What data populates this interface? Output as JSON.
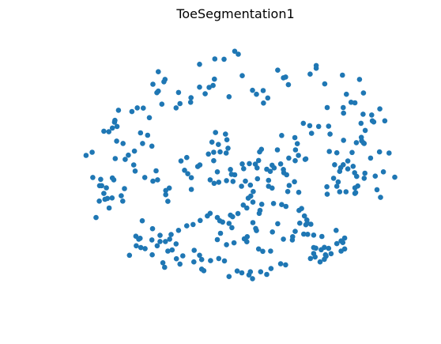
{
  "chart_data": {
    "type": "scatter",
    "title": "ToeSegmentation1",
    "xlabel": "",
    "ylabel": "",
    "axes_visible": false,
    "grid": false,
    "marker_color": "#1f77b4",
    "xlim": [
      0,
      100
    ],
    "ylim": [
      0,
      100
    ],
    "points": [
      [
        50.0,
        95.0
      ],
      [
        51.0,
        93.9
      ],
      [
        40.1,
        90.1
      ],
      [
        44.4,
        92.1
      ],
      [
        47.0,
        92.0
      ],
      [
        72.9,
        88.6
      ],
      [
        72.9,
        89.6
      ],
      [
        62.1,
        87.9
      ],
      [
        71.2,
        86.4
      ],
      [
        63.7,
        85.0
      ],
      [
        64.3,
        85.3
      ],
      [
        65.1,
        82.4
      ],
      [
        28.5,
        87.3
      ],
      [
        30.4,
        84.4
      ],
      [
        44.3,
        84.5
      ],
      [
        52.1,
        85.8
      ],
      [
        28.5,
        80.0
      ],
      [
        28.1,
        79.4
      ],
      [
        27.0,
        82.6
      ],
      [
        30.1,
        83.5
      ],
      [
        34.2,
        79.5
      ],
      [
        43.9,
        82.1
      ],
      [
        55.0,
        80.3
      ],
      [
        58.0,
        80.2
      ],
      [
        56.1,
        78.8
      ],
      [
        58.1,
        75.5
      ],
      [
        59.3,
        77.4
      ],
      [
        40.1,
        81.5
      ],
      [
        42.8,
        81.4
      ],
      [
        41.7,
        79.0
      ],
      [
        48.4,
        77.9
      ],
      [
        37.7,
        77.5
      ],
      [
        37.6,
        75.8
      ],
      [
        34.6,
        75.3
      ],
      [
        29.5,
        75.1
      ],
      [
        33.5,
        73.7
      ],
      [
        24.3,
        73.6
      ],
      [
        26.0,
        70.0
      ],
      [
        22.6,
        73.7
      ],
      [
        21.1,
        72.3
      ],
      [
        17.3,
        72.8
      ],
      [
        16.3,
        69.0
      ],
      [
        16.2,
        68.3
      ],
      [
        15.6,
        66.1
      ],
      [
        16.9,
        66.7
      ],
      [
        13.2,
        64.9
      ],
      [
        14.6,
        64.7
      ],
      [
        16.8,
        61.2
      ],
      [
        25.5,
        63.4
      ],
      [
        23.5,
        64.3
      ],
      [
        24.1,
        60.3
      ],
      [
        26.7,
        59.3
      ],
      [
        21.8,
        57.4
      ],
      [
        18.6,
        60.3
      ],
      [
        19.2,
        54.3
      ],
      [
        16.4,
        54.6
      ],
      [
        20.1,
        55.9
      ],
      [
        21.6,
        52.2
      ],
      [
        15.6,
        47.3
      ],
      [
        16.0,
        46.6
      ],
      [
        12.6,
        44.4
      ],
      [
        12.3,
        46.8
      ],
      [
        9.9,
        57.0
      ],
      [
        8.2,
        55.8
      ],
      [
        10.1,
        47.5
      ],
      [
        13.9,
        43.6
      ],
      [
        13.2,
        41.5
      ],
      [
        12.0,
        44.4
      ],
      [
        14.7,
        36.0
      ],
      [
        11.9,
        38.6
      ],
      [
        11.0,
        32.4
      ],
      [
        13.5,
        39.3
      ],
      [
        14.2,
        39.6
      ],
      [
        15.5,
        39.8
      ],
      [
        19.0,
        43.3
      ],
      [
        18.1,
        40.6
      ],
      [
        18.5,
        38.6
      ],
      [
        27.9,
        50.0
      ],
      [
        24.7,
        47.5
      ],
      [
        27.0,
        46.1
      ],
      [
        28.3,
        46.6
      ],
      [
        22.0,
        49.9
      ],
      [
        30.6,
        41.0
      ],
      [
        31.2,
        38.5
      ],
      [
        30.6,
        42.6
      ],
      [
        31.6,
        43.5
      ],
      [
        37.8,
        43.0
      ],
      [
        36.8,
        48.9
      ],
      [
        37.8,
        47.4
      ],
      [
        34.9,
        53.7
      ],
      [
        35.9,
        50.2
      ],
      [
        36.5,
        55.0
      ],
      [
        40.2,
        52.2
      ],
      [
        39.6,
        51.6
      ],
      [
        44.1,
        53.8
      ],
      [
        45.9,
        57.1
      ],
      [
        42.6,
        56.3
      ],
      [
        44.1,
        57.0
      ],
      [
        47.6,
        56.7
      ],
      [
        48.1,
        58.5
      ],
      [
        45.4,
        59.9
      ],
      [
        47.8,
        61.7
      ],
      [
        44.6,
        64.4
      ],
      [
        43.6,
        60.8
      ],
      [
        47.4,
        63.8
      ],
      [
        45.1,
        49.6
      ],
      [
        48.8,
        50.5
      ],
      [
        47.7,
        46.3
      ],
      [
        44.2,
        45.3
      ],
      [
        45.5,
        45.7
      ],
      [
        43.1,
        46.6
      ],
      [
        51.9,
        44.2
      ],
      [
        53.0,
        46.1
      ],
      [
        49.5,
        46.0
      ],
      [
        50.0,
        48.5
      ],
      [
        49.1,
        48.7
      ],
      [
        52.5,
        50.8
      ],
      [
        52.1,
        52.6
      ],
      [
        54.1,
        52.7
      ],
      [
        55.8,
        52.5
      ],
      [
        56.3,
        51.1
      ],
      [
        59.0,
        50.6
      ],
      [
        60.0,
        49.8
      ],
      [
        56.4,
        47.0
      ],
      [
        55.2,
        42.2
      ],
      [
        54.5,
        40.5
      ],
      [
        54.4,
        44.6
      ],
      [
        59.5,
        44.2
      ],
      [
        59.5,
        46.4
      ],
      [
        60.5,
        43.5
      ],
      [
        63.8,
        49.3
      ],
      [
        64.6,
        48.5
      ],
      [
        66.8,
        45.9
      ],
      [
        68.0,
        41.9
      ],
      [
        64.9,
        42.2
      ],
      [
        65.3,
        44.5
      ],
      [
        61.1,
        51.1
      ],
      [
        62.9,
        52.6
      ],
      [
        63.7,
        50.5
      ],
      [
        67.0,
        53.8
      ],
      [
        69.8,
        54.3
      ],
      [
        70.0,
        54.5
      ],
      [
        65.2,
        54.8
      ],
      [
        67.9,
        55.8
      ],
      [
        62.0,
        57.9
      ],
      [
        57.5,
        58.1
      ],
      [
        57.0,
        57.1
      ],
      [
        56.7,
        53.9
      ],
      [
        60.5,
        52.1
      ],
      [
        67.1,
        57.9
      ],
      [
        67.6,
        60.2
      ],
      [
        66.9,
        62.5
      ],
      [
        63.2,
        63.3
      ],
      [
        69.3,
        67.9
      ],
      [
        71.1,
        67.0
      ],
      [
        73.6,
        66.7
      ],
      [
        71.6,
        64.1
      ],
      [
        76.4,
        66.8
      ],
      [
        76.8,
        63.8
      ],
      [
        76.6,
        57.3
      ],
      [
        78.7,
        56.8
      ],
      [
        78.1,
        52.3
      ],
      [
        79.8,
        51.2
      ],
      [
        79.5,
        49.8
      ],
      [
        79.1,
        45.8
      ],
      [
        78.7,
        44.2
      ],
      [
        75.9,
        44.0
      ],
      [
        77.8,
        47.2
      ],
      [
        76.0,
        41.2
      ],
      [
        79.5,
        42.1
      ],
      [
        81.3,
        42.1
      ],
      [
        83.8,
        41.5
      ],
      [
        84.0,
        41.8
      ],
      [
        84.6,
        44.3
      ],
      [
        86.4,
        47.2
      ],
      [
        83.7,
        49.3
      ],
      [
        84.3,
        47.9
      ],
      [
        83.8,
        43.6
      ],
      [
        80.5,
        52.3
      ],
      [
        81.8,
        50.7
      ],
      [
        83.3,
        51.7
      ],
      [
        86.6,
        49.1
      ],
      [
        88.2,
        54.8
      ],
      [
        93.4,
        56.7
      ],
      [
        91.8,
        49.6
      ],
      [
        90.7,
        57.1
      ],
      [
        89.5,
        48.0
      ],
      [
        95.0,
        47.6
      ],
      [
        90.0,
        42.9
      ],
      [
        91.0,
        40.0
      ],
      [
        81.8,
        53.7
      ],
      [
        83.0,
        56.9
      ],
      [
        85.7,
        61.3
      ],
      [
        85.6,
        62.6
      ],
      [
        86.4,
        60.3
      ],
      [
        86.2,
        60.5
      ],
      [
        84.2,
        60.6
      ],
      [
        80.6,
        61.5
      ],
      [
        86.7,
        65.2
      ],
      [
        85.5,
        67.9
      ],
      [
        88.7,
        68.8
      ],
      [
        88.5,
        71.0
      ],
      [
        89.1,
        68.4
      ],
      [
        86.1,
        71.3
      ],
      [
        80.6,
        71.7
      ],
      [
        80.5,
        73.8
      ],
      [
        76.0,
        73.8
      ],
      [
        83.8,
        75.6
      ],
      [
        81.4,
        78.8
      ],
      [
        86.2,
        79.3
      ],
      [
        85.1,
        84.4
      ],
      [
        75.3,
        82.7
      ],
      [
        80.3,
        86.0
      ],
      [
        82.7,
        75.8
      ],
      [
        90.8,
        73.3
      ],
      [
        92.2,
        68.8
      ],
      [
        24.0,
        31.2
      ],
      [
        26.7,
        24.0
      ],
      [
        22.3,
        21.8
      ],
      [
        23.6,
        21.1
      ],
      [
        24.8,
        20.7
      ],
      [
        23.0,
        24.3
      ],
      [
        23.4,
        24.6
      ],
      [
        26.8,
        18.4
      ],
      [
        28.2,
        21.8
      ],
      [
        32.4,
        20.2
      ],
      [
        33.5,
        22.5
      ],
      [
        33.6,
        16.9
      ],
      [
        34.6,
        14.9
      ],
      [
        29.8,
        15.4
      ],
      [
        30.3,
        13.7
      ],
      [
        38.5,
        15.7
      ],
      [
        40.7,
        16.6
      ],
      [
        40.1,
        18.2
      ],
      [
        38.6,
        20.1
      ],
      [
        40.7,
        13.0
      ],
      [
        41.3,
        12.4
      ],
      [
        43.2,
        16.2
      ],
      [
        45.5,
        17.0
      ],
      [
        47.1,
        16.1
      ],
      [
        48.4,
        10.2
      ],
      [
        50.7,
        12.3
      ],
      [
        52.0,
        11.6
      ],
      [
        54.4,
        12.0
      ],
      [
        54.0,
        10.8
      ],
      [
        55.0,
        9.4
      ],
      [
        57.3,
        12.0
      ],
      [
        59.0,
        11.0
      ],
      [
        60.2,
        13.2
      ],
      [
        62.9,
        15.0
      ],
      [
        64.3,
        14.6
      ],
      [
        60.1,
        19.8
      ],
      [
        57.9,
        19.7
      ],
      [
        63.7,
        24.3
      ],
      [
        66.2,
        24.0
      ],
      [
        66.3,
        25.2
      ],
      [
        69.4,
        26.2
      ],
      [
        71.4,
        29.9
      ],
      [
        74.5,
        25.3
      ],
      [
        74.3,
        20.3
      ],
      [
        76.4,
        20.8
      ],
      [
        75.5,
        18.4
      ],
      [
        75.7,
        17.9
      ],
      [
        75.2,
        16.7
      ],
      [
        74.0,
        15.7
      ],
      [
        71.3,
        17.0
      ],
      [
        72.2,
        18.9
      ],
      [
        72.6,
        17.6
      ],
      [
        77.1,
        18.8
      ],
      [
        79.9,
        19.8
      ],
      [
        80.9,
        20.6
      ],
      [
        78.7,
        22.6
      ],
      [
        79.9,
        23.6
      ],
      [
        56.7,
        20.6
      ],
      [
        35.4,
        18.0
      ],
      [
        22.2,
        25.4
      ],
      [
        26.9,
        28.2
      ],
      [
        29.0,
        25.7
      ],
      [
        20.4,
        18.2
      ],
      [
        31.2,
        19.8
      ],
      [
        60.6,
        27.0
      ],
      [
        62.1,
        30.1
      ],
      [
        68.3,
        30.3
      ],
      [
        70.0,
        29.7
      ],
      [
        67.0,
        27.2
      ],
      [
        72.8,
        20.9
      ],
      [
        72.2,
        21.1
      ],
      [
        75.2,
        21.2
      ],
      [
        78.5,
        27.6
      ],
      [
        80.4,
        23.0
      ],
      [
        80.9,
        24.7
      ],
      [
        72.2,
        25.8
      ],
      [
        70.5,
        26.1
      ],
      [
        70.4,
        30.3
      ],
      [
        70.3,
        31.5
      ],
      [
        69.6,
        33.0
      ],
      [
        68.1,
        35.1
      ],
      [
        68.8,
        35.8
      ],
      [
        63.2,
        37.3
      ],
      [
        64.4,
        36.6
      ],
      [
        60.9,
        37.7
      ],
      [
        57.6,
        37.4
      ],
      [
        57.1,
        35.1
      ],
      [
        55.1,
        38.2
      ],
      [
        53.8,
        39.7
      ],
      [
        52.4,
        37.1
      ],
      [
        53.4,
        36.0
      ],
      [
        50.9,
        33.9
      ],
      [
        48.8,
        33.3
      ],
      [
        49.4,
        32.7
      ],
      [
        46.6,
        30.7
      ],
      [
        45.8,
        31.2
      ],
      [
        45.1,
        32.4
      ],
      [
        43.1,
        34.0
      ],
      [
        42.3,
        33.0
      ],
      [
        40.3,
        31.3
      ],
      [
        38.3,
        29.8
      ],
      [
        36.5,
        29.3
      ],
      [
        34.2,
        27.6
      ],
      [
        32.1,
        26.0
      ],
      [
        31.7,
        24.3
      ],
      [
        30.5,
        23.4
      ],
      [
        29.0,
        23.4
      ],
      [
        56.9,
        34.0
      ],
      [
        55.1,
        30.5
      ],
      [
        55.9,
        28.3
      ],
      [
        56.1,
        27.5
      ],
      [
        49.2,
        28.6
      ],
      [
        48.4,
        30.2
      ],
      [
        46.0,
        26.5
      ],
      [
        45.1,
        24.1
      ],
      [
        47.7,
        22.2
      ],
      [
        49.8,
        22.9
      ],
      [
        52.7,
        24.4
      ],
      [
        53.4,
        23.3
      ],
      [
        53.5,
        25.2
      ]
    ]
  }
}
